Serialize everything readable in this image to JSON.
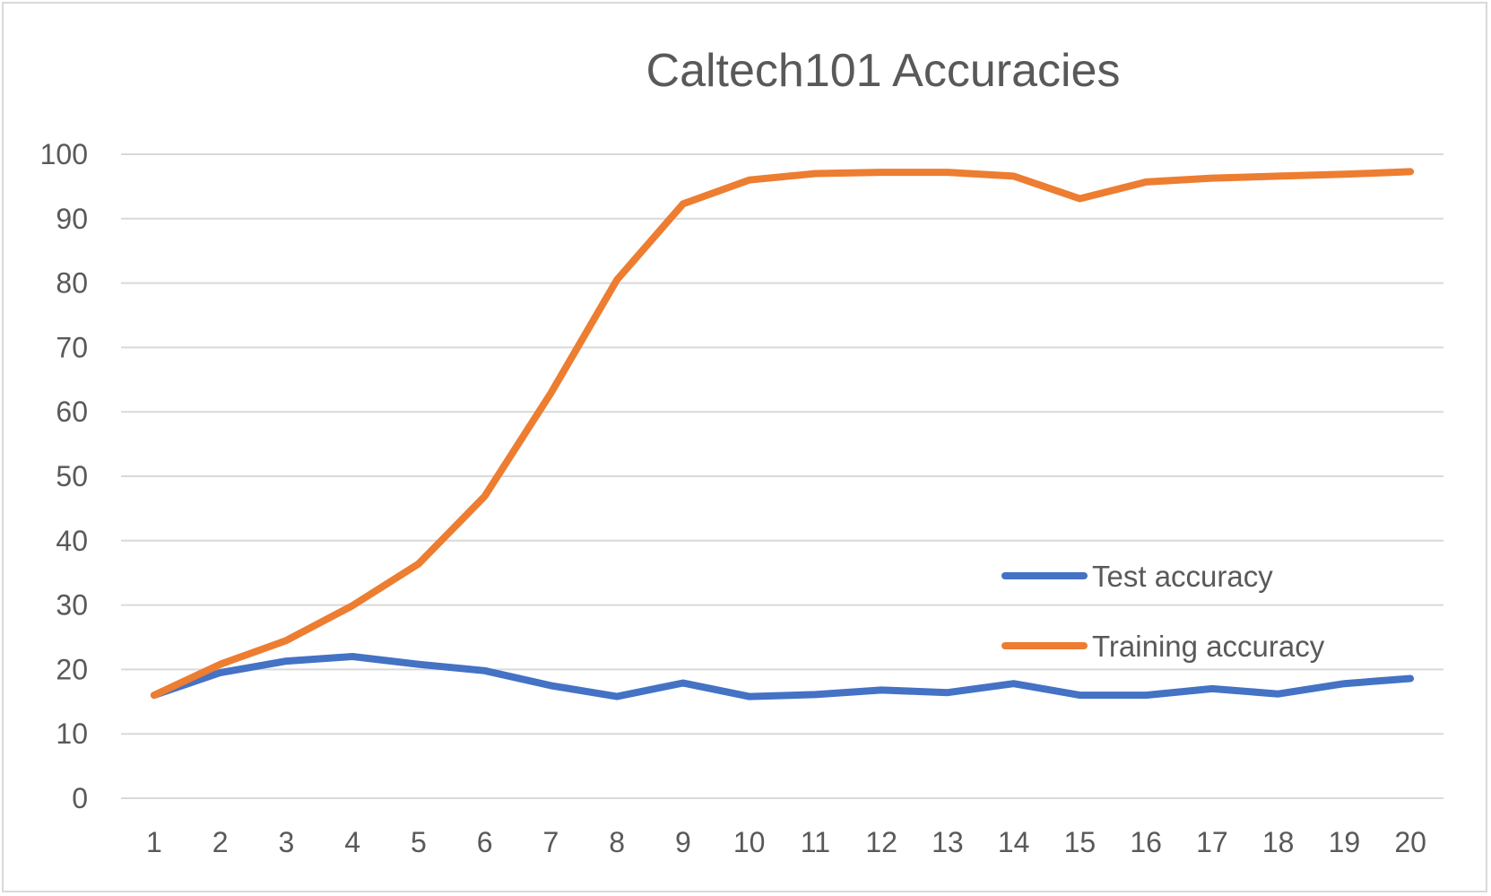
{
  "chart_data": {
    "type": "line",
    "title": "Caltech101 Accuracies",
    "xlabel": "",
    "ylabel": "",
    "ylim": [
      0,
      100
    ],
    "yticks": [
      0,
      10,
      20,
      30,
      40,
      50,
      60,
      70,
      80,
      90,
      100
    ],
    "x": [
      1,
      2,
      3,
      4,
      5,
      6,
      7,
      8,
      9,
      10,
      11,
      12,
      13,
      14,
      15,
      16,
      17,
      18,
      19,
      20
    ],
    "grid": true,
    "legend_position": "right",
    "series": [
      {
        "name": "Test accuracy",
        "color": "#4472c4",
        "values": [
          16.0,
          19.5,
          21.3,
          22.0,
          20.8,
          19.8,
          17.5,
          15.8,
          17.9,
          15.8,
          16.1,
          16.8,
          16.4,
          17.8,
          16.0,
          16.0,
          17.0,
          16.2,
          17.8,
          18.6
        ]
      },
      {
        "name": "Training accuracy",
        "color": "#ed7d31",
        "values": [
          16.0,
          20.8,
          24.5,
          29.9,
          36.4,
          46.9,
          62.9,
          80.5,
          92.3,
          96.0,
          97.0,
          97.2,
          97.2,
          96.6,
          93.1,
          95.7,
          96.3,
          96.6,
          96.9,
          97.3
        ]
      }
    ]
  }
}
